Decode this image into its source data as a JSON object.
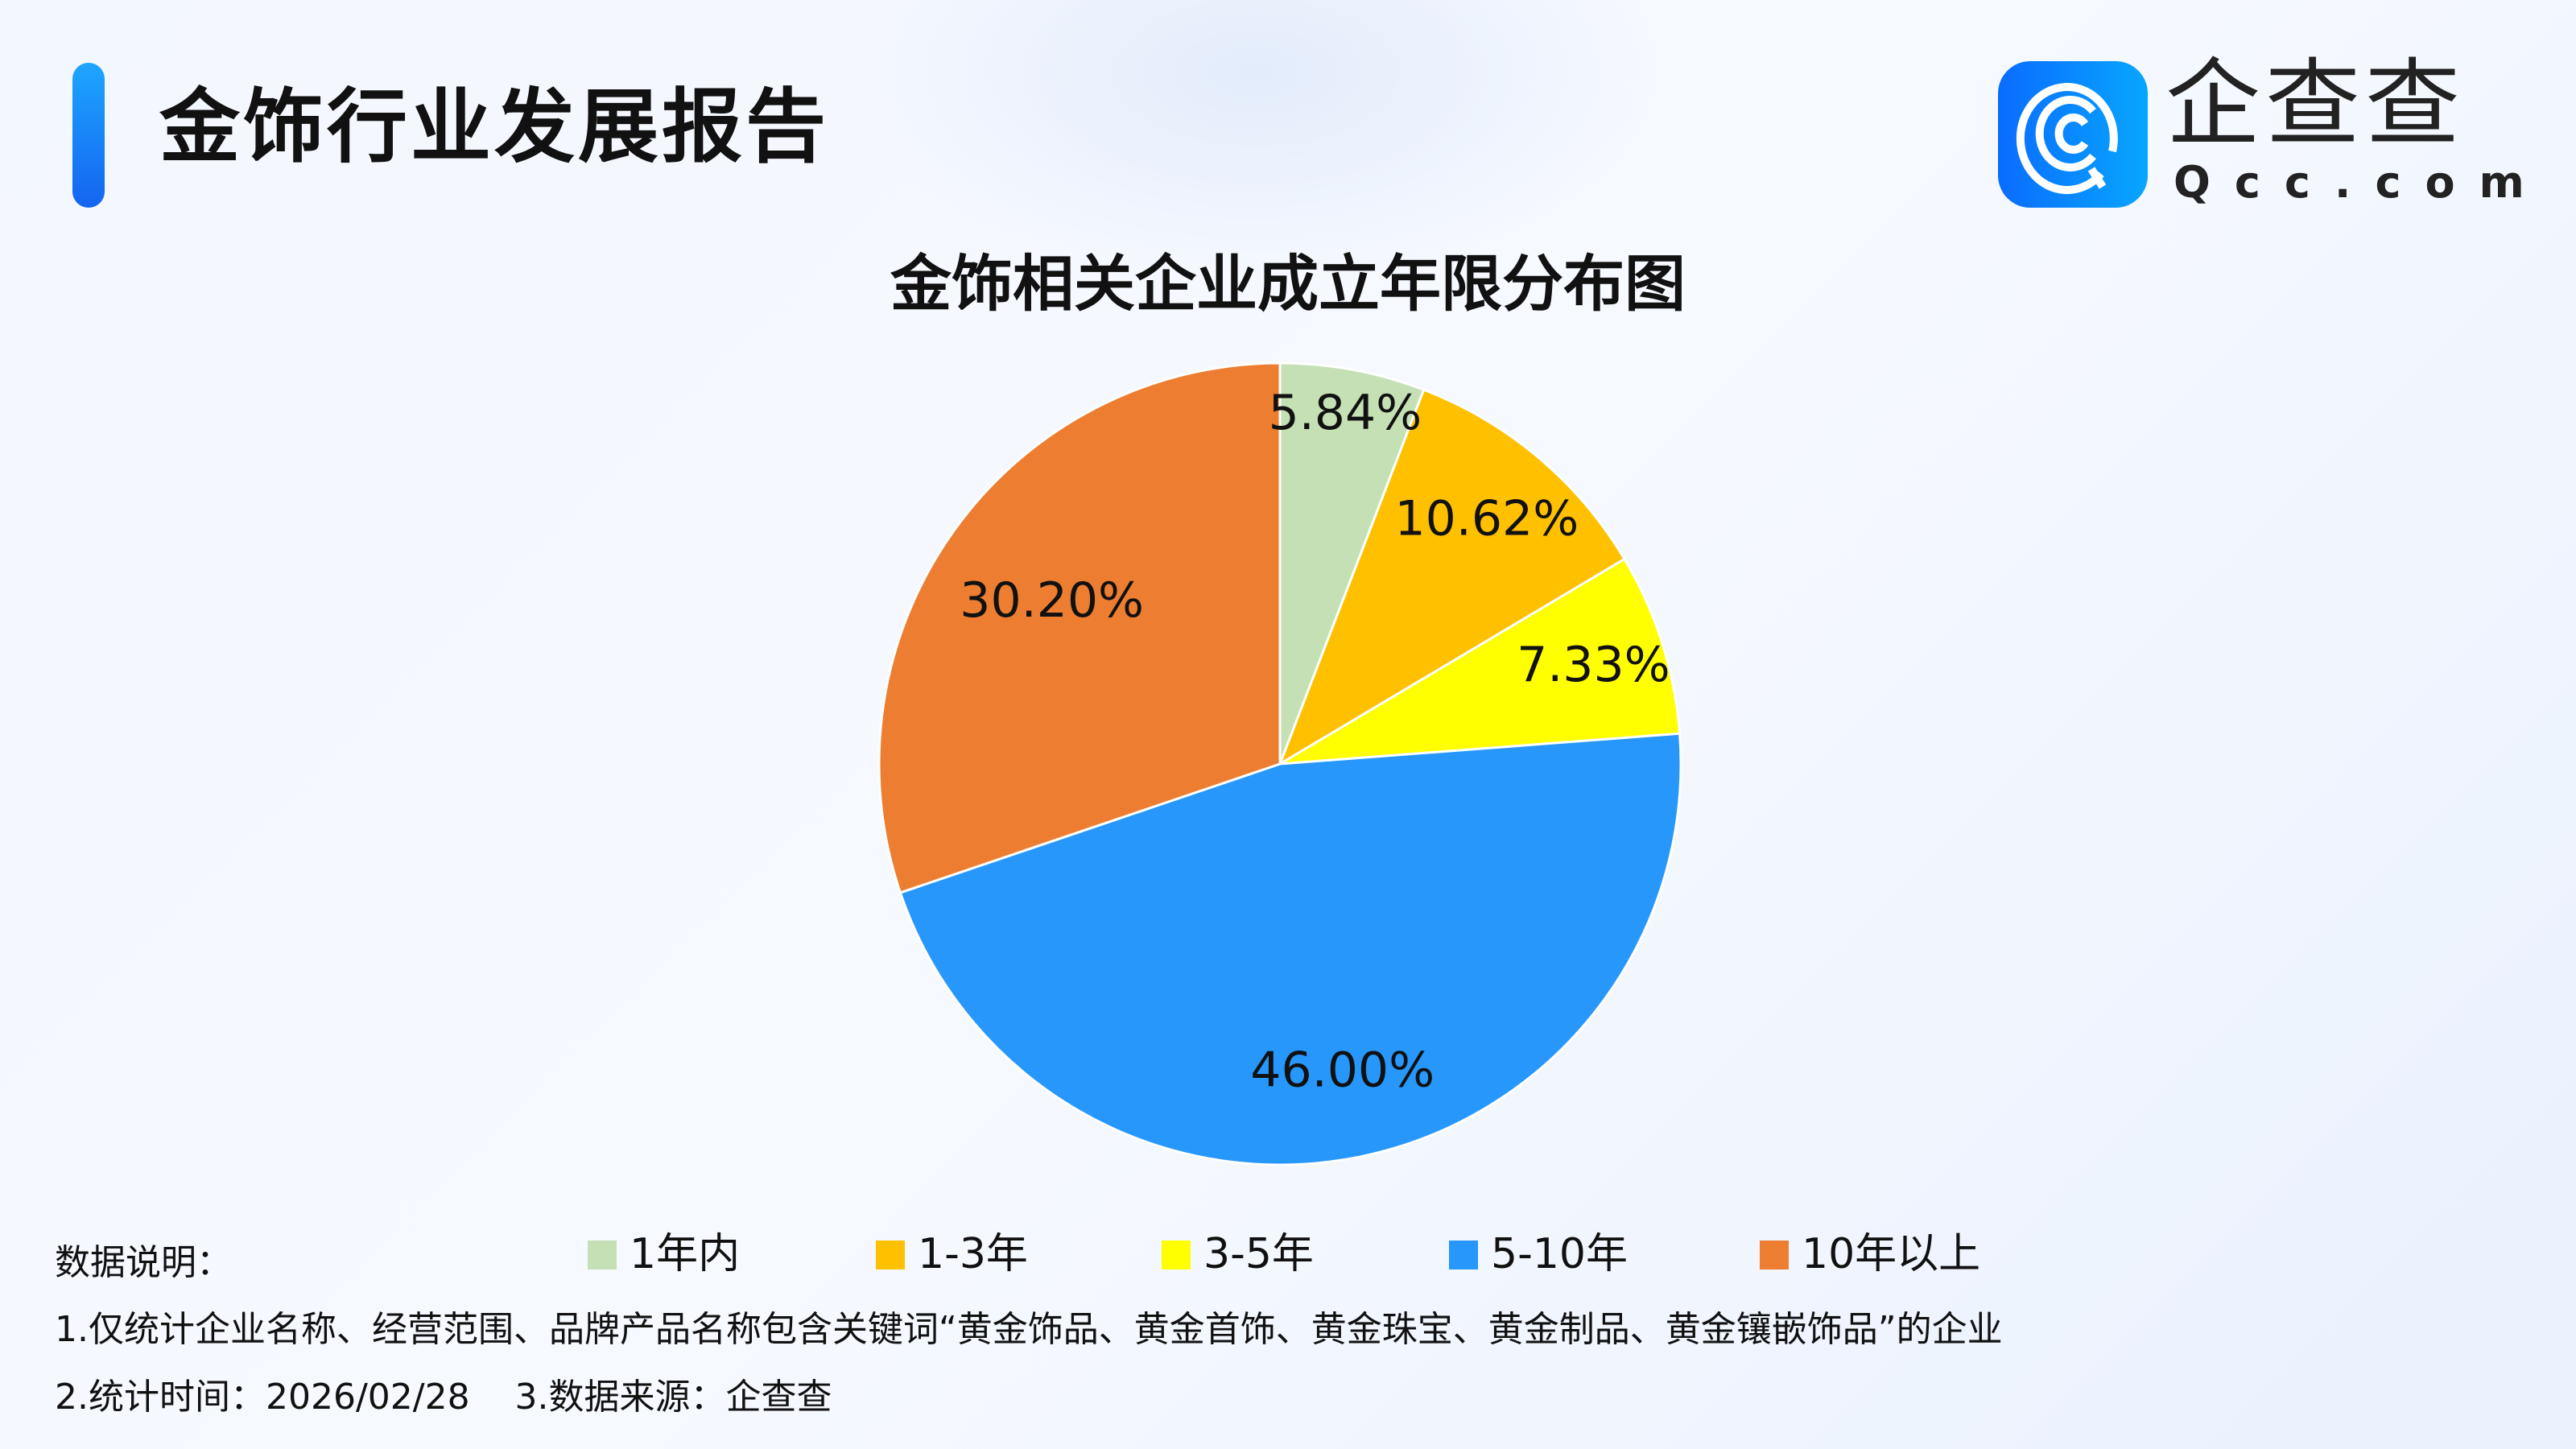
{
  "header": {
    "title": "金饰行业发展报告"
  },
  "logo": {
    "name": "企查查",
    "domain": "Qcc.com",
    "color": "#0a7cff"
  },
  "chart_data": {
    "type": "pie",
    "title": "金饰相关企业成立年限分布图",
    "categories": [
      "1年内",
      "1-3年",
      "3-5年",
      "5-10年",
      "10年以上"
    ],
    "values": [
      5.84,
      10.62,
      7.33,
      46.0,
      30.2
    ],
    "labels": [
      "5.84%",
      "10.62%",
      "7.33%",
      "46.00%",
      "30.20%"
    ],
    "colors": [
      "#C5E0B4",
      "#FFC000",
      "#FFFF00",
      "#2797FB",
      "#ED7D31"
    ],
    "start": "top, clockwise",
    "legend_position": "bottom"
  },
  "notes": {
    "heading": "数据说明：",
    "line1": "1.仅统计企业名称、经营范围、品牌产品名称包含关键词“黄金饰品、黄金首饰、黄金珠宝、黄金制品、黄金镶嵌饰品”的企业",
    "line2": "2.统计时间：2026/02/28    3.数据来源：企查查"
  }
}
